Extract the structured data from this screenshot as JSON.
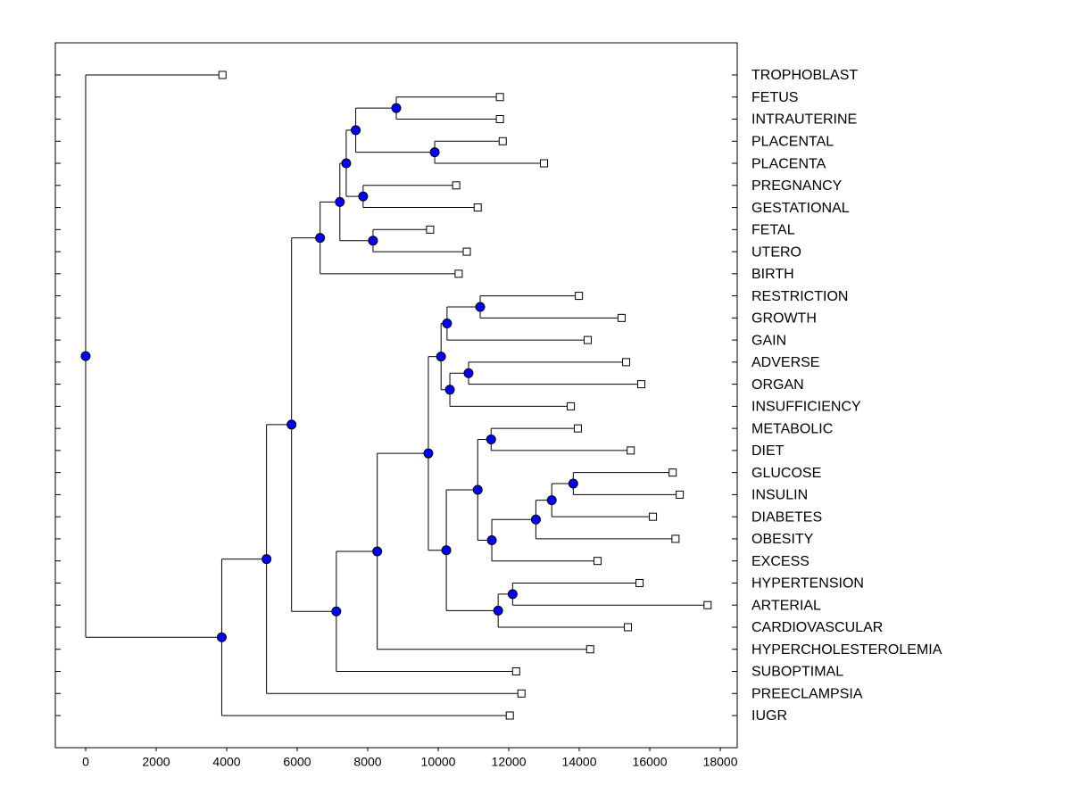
{
  "chart_data": {
    "type": "dendrogram",
    "xlim": [
      -860,
      18480
    ],
    "xticks": [
      0,
      2000,
      4000,
      6000,
      8000,
      10000,
      12000,
      14000,
      16000,
      18000
    ],
    "line_color": "#000000",
    "node_color": "#0000ff",
    "leaf_color": "#ffffff",
    "leaves": [
      {
        "label": "TROPHOBLAST",
        "x": 3880
      },
      {
        "label": "FETUS",
        "x": 11750
      },
      {
        "label": "INTRAUTERINE",
        "x": 11750
      },
      {
        "label": "PLACENTAL",
        "x": 11830
      },
      {
        "label": "PLACENTA",
        "x": 13000
      },
      {
        "label": "PREGNANCY",
        "x": 10510
      },
      {
        "label": "GESTATIONAL",
        "x": 11120
      },
      {
        "label": "FETAL",
        "x": 9770
      },
      {
        "label": "UTERO",
        "x": 10810
      },
      {
        "label": "BIRTH",
        "x": 10580
      },
      {
        "label": "RESTRICTION",
        "x": 13990
      },
      {
        "label": "GROWTH",
        "x": 15200
      },
      {
        "label": "GAIN",
        "x": 14240
      },
      {
        "label": "ADVERSE",
        "x": 15330
      },
      {
        "label": "ORGAN",
        "x": 15760
      },
      {
        "label": "INSUFFICIENCY",
        "x": 13760
      },
      {
        "label": "METABOLIC",
        "x": 13960
      },
      {
        "label": "DIET",
        "x": 15460
      },
      {
        "label": "GLUCOSE",
        "x": 16650
      },
      {
        "label": "INSULIN",
        "x": 16850
      },
      {
        "label": "DIABETES",
        "x": 16090
      },
      {
        "label": "OBESITY",
        "x": 16730
      },
      {
        "label": "EXCESS",
        "x": 14520
      },
      {
        "label": "HYPERTENSION",
        "x": 15710
      },
      {
        "label": "ARTERIAL",
        "x": 17640
      },
      {
        "label": "CARDIOVASCULAR",
        "x": 15380
      },
      {
        "label": "HYPERCHOLESTEROLEMIA",
        "x": 14310
      },
      {
        "label": "SUBOPTIMAL",
        "x": 12210
      },
      {
        "label": "PREECLAMPSIA",
        "x": 12360
      },
      {
        "label": "IUGR",
        "x": 12030
      }
    ],
    "nodes": [
      {
        "x": 0,
        "children": [
          {
            "leaf": 0
          },
          {
            "node": 1
          }
        ]
      },
      {
        "x": 3860,
        "children": [
          {
            "node": 2
          },
          {
            "leaf": 29
          }
        ]
      },
      {
        "x": 5130,
        "children": [
          {
            "node": 3
          },
          {
            "leaf": 28
          }
        ]
      },
      {
        "x": 5840,
        "children": [
          {
            "node": 4
          },
          {
            "node": 12
          }
        ]
      },
      {
        "x": 6650,
        "children": [
          {
            "node": 5
          },
          {
            "leaf": 9
          }
        ]
      },
      {
        "x": 7210,
        "children": [
          {
            "node": 6
          },
          {
            "node": 11
          }
        ]
      },
      {
        "x": 7390,
        "children": [
          {
            "node": 7
          },
          {
            "node": 10
          }
        ]
      },
      {
        "x": 7660,
        "children": [
          {
            "node": 8
          },
          {
            "node": 9
          }
        ]
      },
      {
        "x": 8810,
        "children": [
          {
            "leaf": 1
          },
          {
            "leaf": 2
          }
        ]
      },
      {
        "x": 9900,
        "children": [
          {
            "leaf": 3
          },
          {
            "leaf": 4
          }
        ]
      },
      {
        "x": 7870,
        "children": [
          {
            "leaf": 5
          },
          {
            "leaf": 6
          }
        ]
      },
      {
        "x": 8150,
        "children": [
          {
            "leaf": 7
          },
          {
            "leaf": 8
          }
        ]
      },
      {
        "x": 7110,
        "children": [
          {
            "node": 13
          },
          {
            "leaf": 27
          }
        ]
      },
      {
        "x": 8270,
        "children": [
          {
            "node": 14
          },
          {
            "leaf": 26
          }
        ]
      },
      {
        "x": 9720,
        "children": [
          {
            "node": 15
          },
          {
            "node": 20
          }
        ]
      },
      {
        "x": 10080,
        "children": [
          {
            "node": 16
          },
          {
            "node": 18
          }
        ]
      },
      {
        "x": 10250,
        "children": [
          {
            "node": 17
          },
          {
            "leaf": 12
          }
        ]
      },
      {
        "x": 11190,
        "children": [
          {
            "leaf": 10
          },
          {
            "leaf": 11
          }
        ]
      },
      {
        "x": 10330,
        "children": [
          {
            "node": 19
          },
          {
            "leaf": 15
          }
        ]
      },
      {
        "x": 10860,
        "children": [
          {
            "leaf": 13
          },
          {
            "leaf": 14
          }
        ]
      },
      {
        "x": 10230,
        "children": [
          {
            "node": 21
          },
          {
            "node": 27
          }
        ]
      },
      {
        "x": 11120,
        "children": [
          {
            "node": 22
          },
          {
            "node": 23
          }
        ]
      },
      {
        "x": 11500,
        "children": [
          {
            "leaf": 16
          },
          {
            "leaf": 17
          }
        ]
      },
      {
        "x": 11520,
        "children": [
          {
            "node": 24
          },
          {
            "leaf": 22
          }
        ]
      },
      {
        "x": 12770,
        "children": [
          {
            "node": 25
          },
          {
            "leaf": 21
          }
        ]
      },
      {
        "x": 13220,
        "children": [
          {
            "node": 26
          },
          {
            "leaf": 20
          }
        ]
      },
      {
        "x": 13830,
        "children": [
          {
            "leaf": 18
          },
          {
            "leaf": 19
          }
        ]
      },
      {
        "x": 11700,
        "children": [
          {
            "node": 28
          },
          {
            "leaf": 25
          }
        ]
      },
      {
        "x": 12110,
        "children": [
          {
            "leaf": 23
          },
          {
            "leaf": 24
          }
        ]
      }
    ]
  }
}
